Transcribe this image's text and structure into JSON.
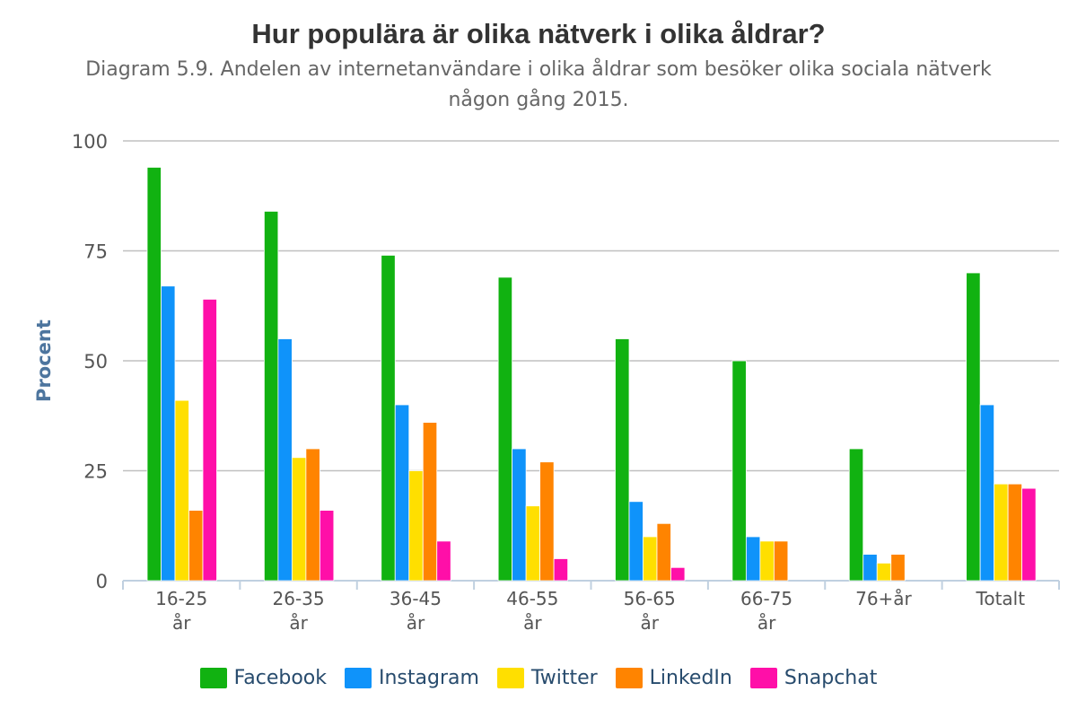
{
  "chart_data": {
    "type": "bar",
    "title": "Hur populära är olika nätverk i olika åldrar?",
    "subtitle": "Diagram 5.9. Andelen av internetanvändare i olika åldrar som besöker olika sociala nätverk någon gång 2015.",
    "ylabel": "Procent",
    "xlabel": "",
    "ylim": [
      0,
      100
    ],
    "yticks": [
      0,
      25,
      50,
      75,
      100
    ],
    "grid": true,
    "legend_position": "bottom",
    "categories": [
      [
        "16-25",
        "år"
      ],
      [
        "26-35",
        "år"
      ],
      [
        "36-45",
        "år"
      ],
      [
        "46-55",
        "år"
      ],
      [
        "56-65",
        "år"
      ],
      [
        "66-75",
        "år"
      ],
      [
        "76+år"
      ],
      [
        "Totalt"
      ]
    ],
    "series": [
      {
        "name": "Facebook",
        "color": "#11b211",
        "values": [
          94,
          84,
          74,
          69,
          55,
          50,
          30,
          70
        ]
      },
      {
        "name": "Instagram",
        "color": "#0f93fa",
        "values": [
          67,
          55,
          40,
          30,
          18,
          10,
          6,
          40
        ]
      },
      {
        "name": "Twitter",
        "color": "#ffdf00",
        "values": [
          41,
          28,
          25,
          17,
          10,
          9,
          4,
          22
        ]
      },
      {
        "name": "LinkedIn",
        "color": "#ff8400",
        "values": [
          16,
          30,
          36,
          27,
          13,
          9,
          6,
          22
        ]
      },
      {
        "name": "Snapchat",
        "color": "#ff0fa8",
        "values": [
          64,
          16,
          9,
          5,
          3,
          null,
          null,
          21
        ]
      }
    ]
  }
}
